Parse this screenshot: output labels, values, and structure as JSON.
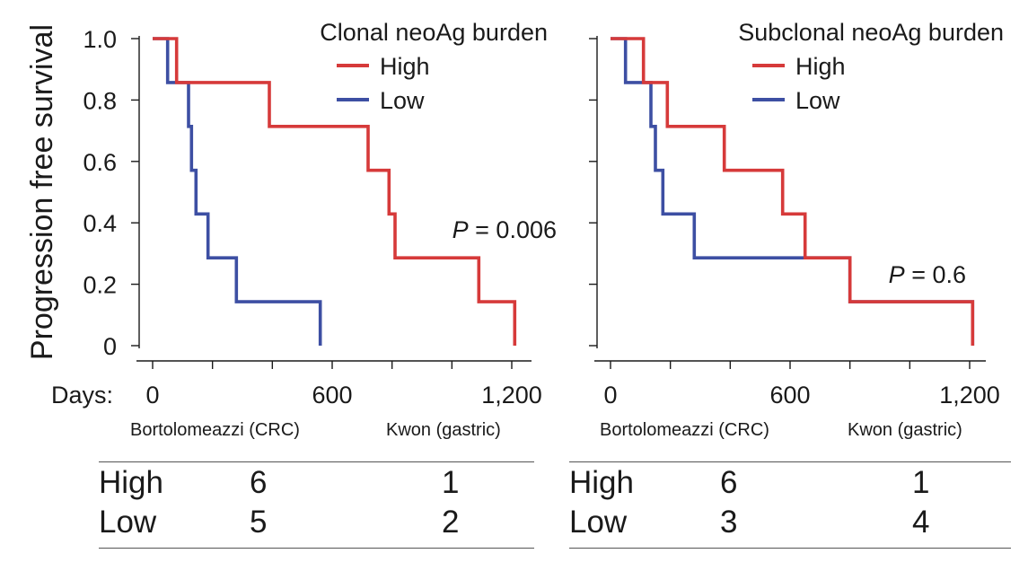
{
  "y_axis_label": "Progression free survival",
  "days_label": "Days:",
  "colors": {
    "high": "#d63a3a",
    "low": "#3d4fa3",
    "axis": "#1a1a1a"
  },
  "chart_data": [
    {
      "type": "line",
      "title": "Clonal neoAg burden",
      "legend": [
        "High",
        "Low"
      ],
      "legend_position": "top-right",
      "xlim": [
        -30,
        1260
      ],
      "ylim": [
        0,
        1.0
      ],
      "x_ticks": [
        "0",
        "600",
        "1,200"
      ],
      "x_tick_values": [
        0,
        600,
        1200
      ],
      "y_ticks": [
        "1.0",
        "0.8",
        "0.6",
        "0.4",
        "0.2",
        "0"
      ],
      "y_tick_values": [
        1.0,
        0.8,
        0.6,
        0.4,
        0.2,
        0
      ],
      "cohorts": [
        "Bortolomeazzi (CRC)",
        "Kwon (gastric)"
      ],
      "p_label": "P",
      "p_value": "= 0.006",
      "series": [
        {
          "name": "High",
          "x": [
            0,
            80,
            80,
            390,
            390,
            720,
            720,
            790,
            790,
            810,
            810,
            1090,
            1090,
            1210,
            1210
          ],
          "y": [
            1.0,
            1.0,
            0.857,
            0.857,
            0.714,
            0.714,
            0.571,
            0.571,
            0.429,
            0.429,
            0.286,
            0.286,
            0.143,
            0.143,
            0
          ]
        },
        {
          "name": "Low",
          "x": [
            0,
            50,
            50,
            120,
            120,
            130,
            130,
            145,
            145,
            185,
            185,
            280,
            280,
            560,
            560
          ],
          "y": [
            1.0,
            1.0,
            0.857,
            0.857,
            0.714,
            0.714,
            0.571,
            0.571,
            0.429,
            0.429,
            0.286,
            0.286,
            0.143,
            0.143,
            0
          ]
        }
      ],
      "risk_table": {
        "rows": [
          {
            "label": "High",
            "values": [
              "6",
              "1"
            ]
          },
          {
            "label": "Low",
            "values": [
              "5",
              "2"
            ]
          }
        ]
      }
    },
    {
      "type": "line",
      "title": "Subclonal neoAg burden",
      "legend": [
        "High",
        "Low"
      ],
      "legend_position": "top-right",
      "xlim": [
        -30,
        1260
      ],
      "ylim": [
        0,
        1.0
      ],
      "x_ticks": [
        "0",
        "600",
        "1,200"
      ],
      "x_tick_values": [
        0,
        600,
        1200
      ],
      "cohorts": [
        "Bortolomeazzi (CRC)",
        "Kwon (gastric)"
      ],
      "p_label": "P",
      "p_value": "= 0.6",
      "series": [
        {
          "name": "High",
          "x": [
            0,
            110,
            110,
            190,
            190,
            380,
            380,
            575,
            575,
            650,
            650,
            800,
            800,
            1210,
            1210
          ],
          "y": [
            1.0,
            1.0,
            0.857,
            0.857,
            0.714,
            0.714,
            0.571,
            0.571,
            0.429,
            0.429,
            0.286,
            0.286,
            0.143,
            0.143,
            0
          ]
        },
        {
          "name": "Low",
          "x": [
            0,
            50,
            50,
            135,
            135,
            150,
            150,
            175,
            175,
            280,
            280,
            800,
            800,
            1210,
            1210
          ],
          "y": [
            1.0,
            1.0,
            0.857,
            0.857,
            0.714,
            0.714,
            0.571,
            0.571,
            0.429,
            0.429,
            0.286,
            0.286,
            0.143,
            0.143,
            0
          ]
        }
      ],
      "risk_table": {
        "rows": [
          {
            "label": "High",
            "values": [
              "6",
              "1"
            ]
          },
          {
            "label": "Low",
            "values": [
              "3",
              "4"
            ]
          }
        ]
      }
    }
  ]
}
